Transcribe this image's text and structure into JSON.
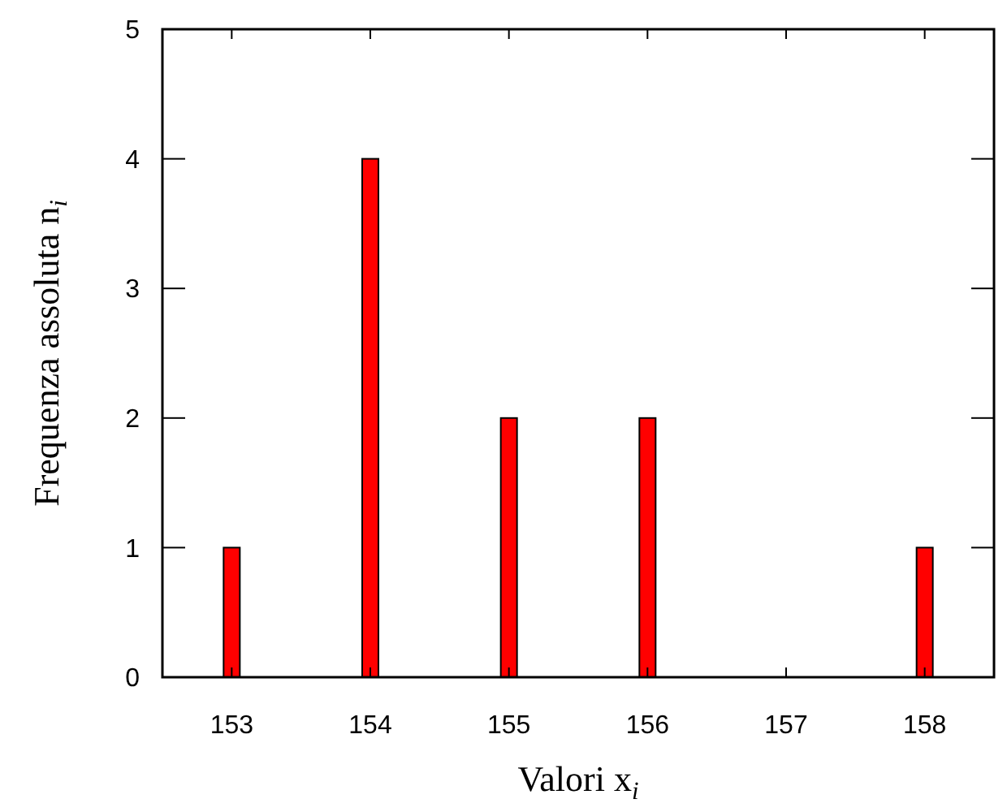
{
  "chart_data": {
    "type": "bar",
    "xlabel": "Valori x$_{i}$",
    "ylabel": "Frequenza assoluta n$_{i}$",
    "x": [
      153,
      154,
      155,
      156,
      158
    ],
    "values": [
      1,
      4,
      2,
      2,
      1
    ],
    "color": "#ff0000",
    "xlim": [
      152.5,
      158.5
    ],
    "xticks": [
      153,
      154,
      155,
      156,
      157,
      158
    ],
    "ylim": [
      0,
      5
    ],
    "yticks": [
      0,
      1,
      2,
      3,
      4,
      5
    ],
    "grid": false
  }
}
